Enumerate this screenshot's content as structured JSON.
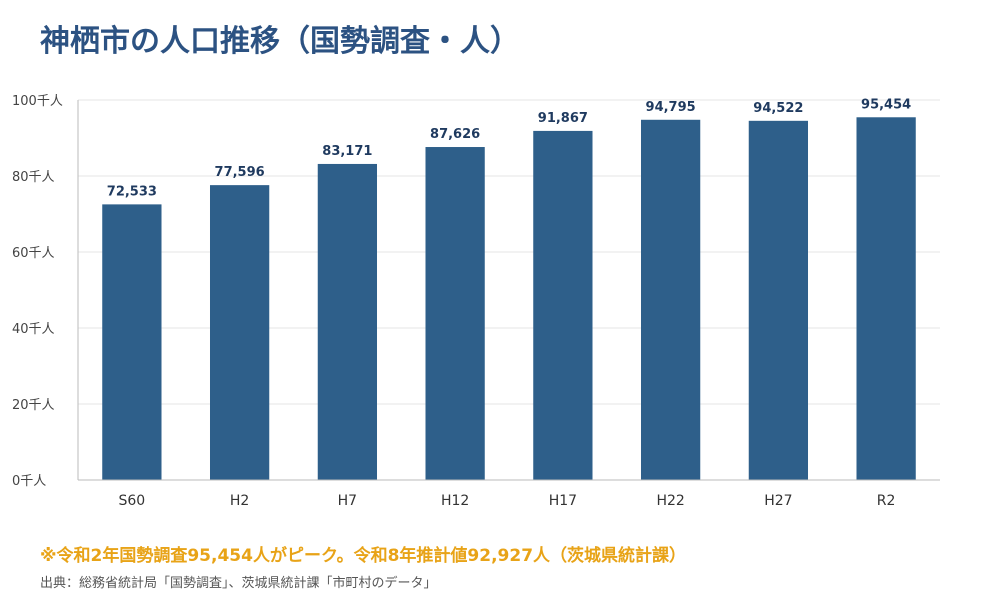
{
  "title": "神栖市の人口推移（国勢調査・人）",
  "note": "※令和2年国勢調査95,454人がピーク。令和8年推計値92,927人（茨城県統計課）",
  "source": "出典：総務省統計局「国勢調査」、茨城県統計課「市町村のデータ」",
  "colors": {
    "bar": "#2e5f8a",
    "title": "#2c5282",
    "note": "#e8a317"
  },
  "chart_data": {
    "type": "bar",
    "categories": [
      "S60",
      "H2",
      "H7",
      "H12",
      "H17",
      "H22",
      "H27",
      "R2"
    ],
    "values": [
      72533,
      77596,
      83171,
      87626,
      91867,
      94795,
      94522,
      95454
    ],
    "value_labels": [
      "72,533",
      "77,596",
      "83,171",
      "87,626",
      "91,867",
      "94,795",
      "94,522",
      "95,454"
    ],
    "ylim": [
      0,
      100000
    ],
    "yticks": [
      0,
      20000,
      40000,
      60000,
      80000,
      100000
    ],
    "ytick_labels": [
      "0千人",
      "20千人",
      "40千人",
      "60千人",
      "80千人",
      "100千人"
    ],
    "grid": true,
    "title": "神栖市の人口推移（国勢調査・人）"
  }
}
